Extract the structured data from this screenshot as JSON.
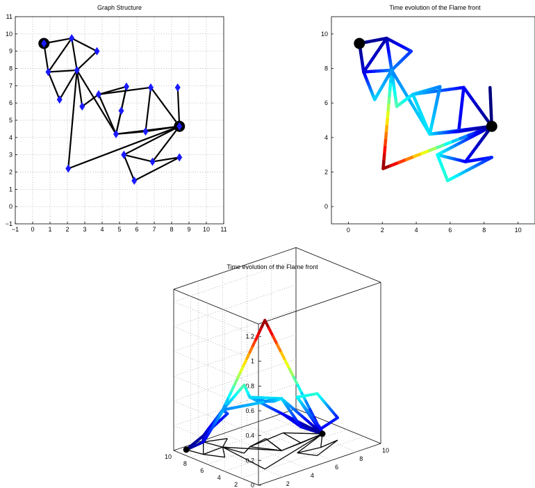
{
  "colors": {
    "edge": "#000000",
    "node": "#1a1aff",
    "source": "#000000",
    "background": "#ffffff"
  },
  "chart_data": [
    {
      "type": "network",
      "title": "Graph Structure",
      "xlim": [
        -1,
        11
      ],
      "ylim": [
        -1,
        11
      ],
      "xticks": [
        "−1",
        "0",
        "1",
        "2",
        "3",
        "4",
        "5",
        "6",
        "7",
        "8",
        "9",
        "10",
        "11"
      ],
      "yticks": [
        "−1",
        "0",
        "1",
        "2",
        "3",
        "4",
        "5",
        "6",
        "7",
        "8",
        "9",
        "10",
        "11"
      ],
      "grid": true,
      "nodes": [
        {
          "id": "A",
          "x": 0.65,
          "y": 9.45,
          "source": true
        },
        {
          "id": "B",
          "x": 2.25,
          "y": 9.75
        },
        {
          "id": "C",
          "x": 3.7,
          "y": 9.0
        },
        {
          "id": "D",
          "x": 0.9,
          "y": 7.8
        },
        {
          "id": "E",
          "x": 2.55,
          "y": 7.9
        },
        {
          "id": "F",
          "x": 1.55,
          "y": 6.2
        },
        {
          "id": "G",
          "x": 2.85,
          "y": 5.8
        },
        {
          "id": "H",
          "x": 3.8,
          "y": 6.5
        },
        {
          "id": "I",
          "x": 5.4,
          "y": 6.95
        },
        {
          "id": "J",
          "x": 5.1,
          "y": 5.55
        },
        {
          "id": "K",
          "x": 6.8,
          "y": 6.9
        },
        {
          "id": "L",
          "x": 8.35,
          "y": 6.9
        },
        {
          "id": "M",
          "x": 4.8,
          "y": 4.2
        },
        {
          "id": "N",
          "x": 6.5,
          "y": 4.35
        },
        {
          "id": "O",
          "x": 8.45,
          "y": 4.65,
          "source": true
        },
        {
          "id": "P",
          "x": 2.05,
          "y": 2.2
        },
        {
          "id": "Q",
          "x": 5.25,
          "y": 3.0
        },
        {
          "id": "R",
          "x": 6.9,
          "y": 2.6
        },
        {
          "id": "S",
          "x": 8.45,
          "y": 2.85
        },
        {
          "id": "T",
          "x": 5.85,
          "y": 1.5
        }
      ],
      "edges": [
        [
          "A",
          "B"
        ],
        [
          "A",
          "D"
        ],
        [
          "B",
          "C"
        ],
        [
          "B",
          "E"
        ],
        [
          "C",
          "E"
        ],
        [
          "B",
          "D"
        ],
        [
          "D",
          "E"
        ],
        [
          "D",
          "F"
        ],
        [
          "E",
          "F"
        ],
        [
          "E",
          "G"
        ],
        [
          "E",
          "M"
        ],
        [
          "E",
          "P"
        ],
        [
          "G",
          "H"
        ],
        [
          "H",
          "M"
        ],
        [
          "H",
          "I"
        ],
        [
          "H",
          "K"
        ],
        [
          "I",
          "M"
        ],
        [
          "I",
          "J"
        ],
        [
          "J",
          "M"
        ],
        [
          "K",
          "N"
        ],
        [
          "K",
          "O"
        ],
        [
          "M",
          "O"
        ],
        [
          "M",
          "N"
        ],
        [
          "N",
          "O"
        ],
        [
          "L",
          "O"
        ],
        [
          "P",
          "O"
        ],
        [
          "O",
          "Q"
        ],
        [
          "O",
          "R"
        ],
        [
          "Q",
          "R"
        ],
        [
          "R",
          "S"
        ],
        [
          "Q",
          "T"
        ],
        [
          "T",
          "S"
        ]
      ]
    },
    {
      "type": "network-colormap",
      "title": "Time evolution of the Flame front",
      "xlim": [
        -1,
        11
      ],
      "ylim": [
        -1,
        11
      ],
      "xticks": [
        "0",
        "2",
        "4",
        "6",
        "8",
        "10"
      ],
      "yticks": [
        "0",
        "2",
        "4",
        "6",
        "8",
        "10"
      ],
      "grid": false,
      "colormap": "jet",
      "clim": [
        0,
        1.2
      ],
      "sources": [
        "A",
        "O"
      ],
      "node_times": {
        "A": 0,
        "B": 0.05,
        "C": 0.2,
        "D": 0.1,
        "E": 0.3,
        "F": 0.4,
        "G": 0.55,
        "H": 0.4,
        "I": 0.3,
        "J": 0.35,
        "K": 0.15,
        "L": 0.0,
        "M": 0.42,
        "N": 0.13,
        "O": 0,
        "P": 1.2,
        "Q": 0.45,
        "R": 0.15,
        "S": 0.18,
        "T": 0.5
      }
    },
    {
      "type": "surface-3d",
      "title": "Time evolution of the Flame front",
      "zlim": [
        0,
        1.2
      ],
      "zticks": [
        "0",
        "0.2",
        "0.4",
        "0.6",
        "0.8",
        "1",
        "1.2"
      ],
      "xticks": [
        "0",
        "2",
        "4",
        "6",
        "8",
        "10"
      ],
      "yticks": [
        "0",
        "2",
        "4",
        "6",
        "8",
        "10"
      ],
      "colormap": "jet",
      "grid": true
    }
  ]
}
